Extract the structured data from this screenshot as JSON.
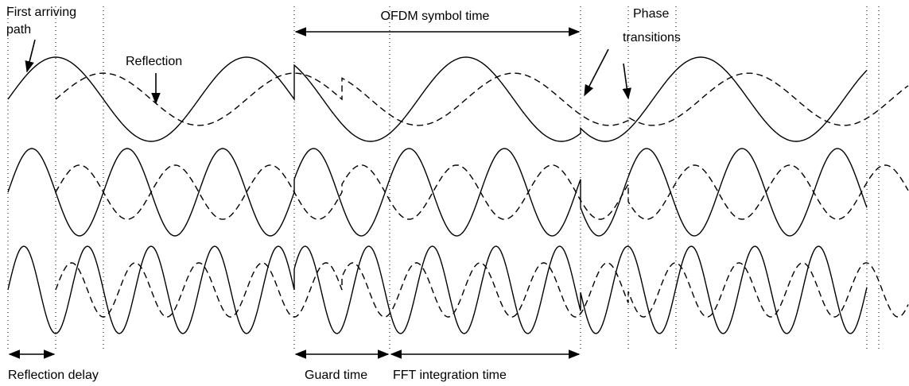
{
  "labels": {
    "first_arriving_path": [
      "First arriving",
      "path"
    ],
    "reflection": "Reflection",
    "ofdm_symbol_time": "OFDM symbol time",
    "phase_transitions": [
      "Phase",
      "transitions"
    ],
    "reflection_delay": "Reflection delay",
    "guard_time": "Guard time",
    "fft_integration_time": "FFT integration time"
  }
}
